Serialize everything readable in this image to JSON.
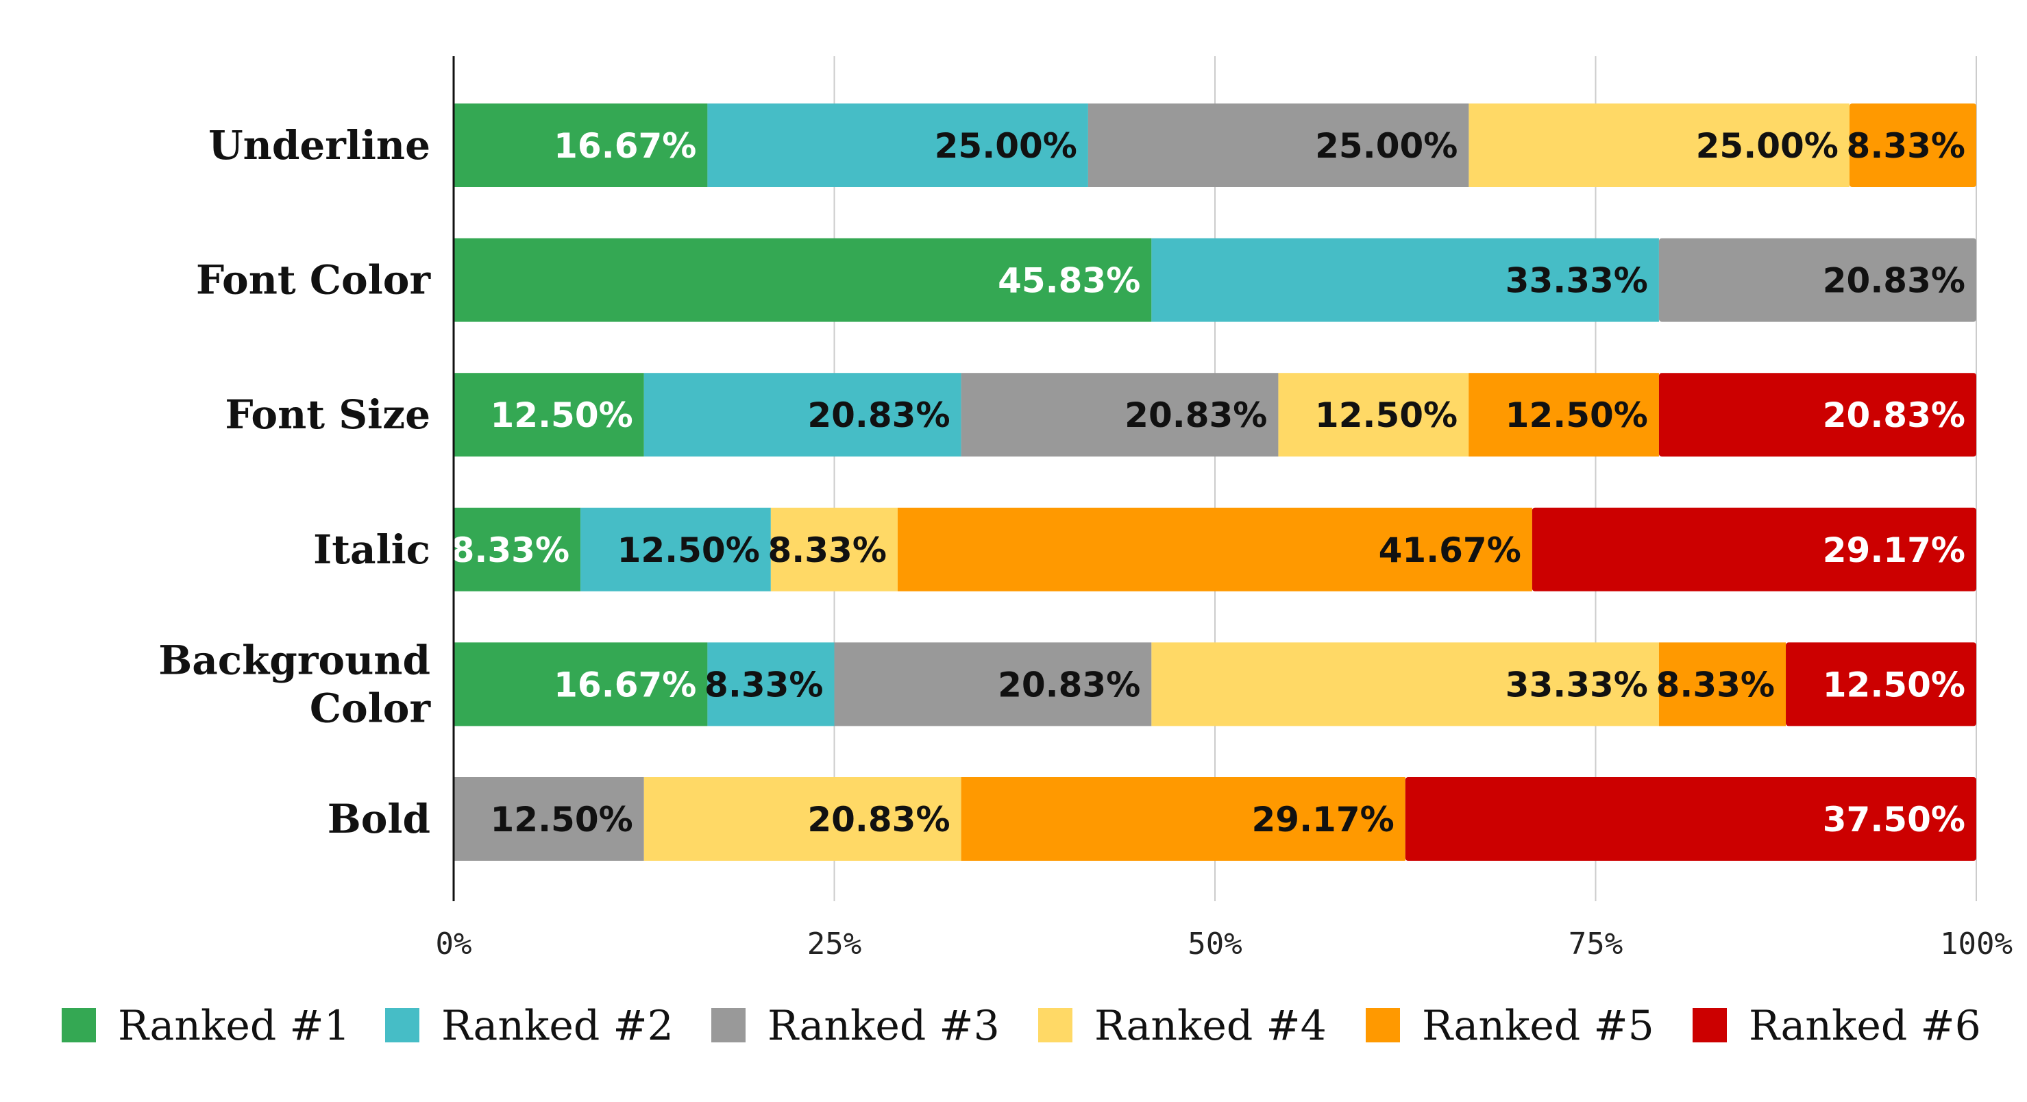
{
  "chart_data": {
    "type": "bar",
    "orientation": "horizontal",
    "stacked": "percent",
    "title": "",
    "xlabel": "",
    "ylabel": "",
    "xlim": [
      0,
      100
    ],
    "x_ticks": [
      "0%",
      "25%",
      "50%",
      "75%",
      "100%"
    ],
    "grid": true,
    "legend_position": "bottom",
    "categories": [
      "Underline",
      "Font Color",
      "Font Size",
      "Italic",
      "Background Color",
      "Bold"
    ],
    "category_lines": [
      [
        "Underline"
      ],
      [
        "Font Color"
      ],
      [
        "Font Size"
      ],
      [
        "Italic"
      ],
      [
        "Background",
        "Color"
      ],
      [
        "Bold"
      ]
    ],
    "series": [
      {
        "name": "Ranked #1",
        "color": "#34a853",
        "label_color": "#ffffff",
        "values": [
          16.67,
          45.83,
          12.5,
          8.33,
          16.67,
          0
        ]
      },
      {
        "name": "Ranked #2",
        "color": "#46bdc6",
        "label_color": "#111111",
        "values": [
          25.0,
          33.33,
          20.83,
          12.5,
          8.33,
          0
        ]
      },
      {
        "name": "Ranked #3",
        "color": "#999999",
        "label_color": "#111111",
        "values": [
          25.0,
          20.83,
          20.83,
          0,
          20.83,
          12.5
        ]
      },
      {
        "name": "Ranked #4",
        "color": "#ffd966",
        "label_color": "#111111",
        "values": [
          25.0,
          0,
          12.5,
          8.33,
          33.33,
          20.83
        ]
      },
      {
        "name": "Ranked #5",
        "color": "#ff9900",
        "label_color": "#111111",
        "values": [
          8.33,
          0,
          12.5,
          41.67,
          8.33,
          29.17
        ]
      },
      {
        "name": "Ranked #6",
        "color": "#cc0000",
        "label_color": "#ffffff",
        "values": [
          0,
          0,
          20.83,
          29.17,
          12.5,
          37.5
        ]
      }
    ]
  }
}
